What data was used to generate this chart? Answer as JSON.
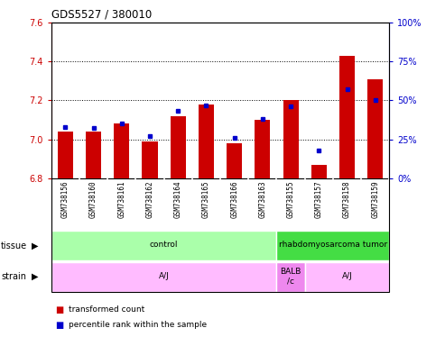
{
  "title": "GDS5527 / 380010",
  "samples": [
    "GSM738156",
    "GSM738160",
    "GSM738161",
    "GSM738162",
    "GSM738164",
    "GSM738165",
    "GSM738166",
    "GSM738163",
    "GSM738155",
    "GSM738157",
    "GSM738158",
    "GSM738159"
  ],
  "red_values": [
    7.04,
    7.04,
    7.08,
    6.99,
    7.12,
    7.18,
    6.98,
    7.1,
    7.2,
    6.87,
    7.43,
    7.31
  ],
  "blue_values": [
    33,
    32,
    35,
    27,
    43,
    47,
    26,
    38,
    46,
    18,
    57,
    50
  ],
  "ylim_left": [
    6.8,
    7.6
  ],
  "ylim_right": [
    0,
    100
  ],
  "yticks_left": [
    6.8,
    7.0,
    7.2,
    7.4,
    7.6
  ],
  "yticks_right": [
    0,
    25,
    50,
    75,
    100
  ],
  "bar_color": "#cc0000",
  "dot_color": "#0000cc",
  "bar_bottom": 6.8,
  "tissue_groups": [
    {
      "label": "control",
      "start": 0,
      "end": 8,
      "color": "#aaffaa"
    },
    {
      "label": "rhabdomyosarcoma tumor",
      "start": 8,
      "end": 12,
      "color": "#44dd44"
    }
  ],
  "strain_groups": [
    {
      "label": "A/J",
      "start": 0,
      "end": 8,
      "color": "#ffbbff"
    },
    {
      "label": "BALB\n/c",
      "start": 8,
      "end": 9,
      "color": "#ee88ee"
    },
    {
      "label": "A/J",
      "start": 9,
      "end": 12,
      "color": "#ffbbff"
    }
  ],
  "legend_red": "transformed count",
  "legend_blue": "percentile rank within the sample",
  "label_bg": "#cccccc",
  "label_divider": "#ffffff",
  "plot_bg": "#ffffff"
}
